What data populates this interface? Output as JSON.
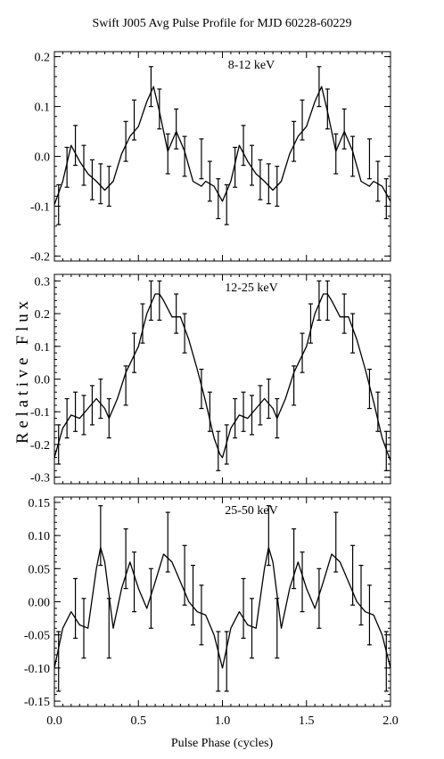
{
  "chart_data": {
    "type": "line",
    "title": "Swift J005 Avg Pulse Profile for MJD 60228-60229",
    "xlabel": "Pulse Phase (cycles)",
    "ylabel": "R e l a t i v e   F l u x",
    "xlim": [
      0.0,
      2.0
    ],
    "x_ticks": [
      "0.0",
      "0.5",
      "1.0",
      "1.5",
      "2.0"
    ],
    "panels": [
      {
        "label": "8-12 keV",
        "ylim": [
          -0.21,
          0.21
        ],
        "y_ticks": [
          -0.2,
          -0.1,
          0.0,
          0.1,
          0.2
        ],
        "y_tick_labels": [
          "-0.2",
          "-0.1",
          "0.0",
          "0.1",
          "0.2"
        ],
        "points": [
          {
            "x": 0.025,
            "y": -0.097,
            "err": 0.04
          },
          {
            "x": 0.075,
            "y": -0.022,
            "err": 0.04
          },
          {
            "x": 0.125,
            "y": 0.022,
            "err": 0.04
          },
          {
            "x": 0.175,
            "y": -0.018,
            "err": 0.04
          },
          {
            "x": 0.225,
            "y": -0.047,
            "err": 0.04
          },
          {
            "x": 0.275,
            "y": -0.055,
            "err": 0.04
          },
          {
            "x": 0.325,
            "y": -0.06,
            "err": 0.04
          },
          {
            "x": 0.425,
            "y": 0.03,
            "err": 0.04
          },
          {
            "x": 0.475,
            "y": 0.073,
            "err": 0.04
          },
          {
            "x": 0.575,
            "y": 0.14,
            "err": 0.04
          },
          {
            "x": 0.625,
            "y": 0.095,
            "err": 0.04
          },
          {
            "x": 0.675,
            "y": 0.005,
            "err": 0.04
          },
          {
            "x": 0.725,
            "y": 0.055,
            "err": 0.04
          },
          {
            "x": 0.775,
            "y": 0.0,
            "err": 0.04
          },
          {
            "x": 0.875,
            "y": -0.005,
            "err": 0.04
          },
          {
            "x": 0.925,
            "y": -0.05,
            "err": 0.04
          },
          {
            "x": 0.975,
            "y": -0.085,
            "err": 0.04
          },
          {
            "x": 1.025,
            "y": -0.097,
            "err": 0.04
          },
          {
            "x": 1.075,
            "y": -0.022,
            "err": 0.04
          },
          {
            "x": 1.125,
            "y": 0.022,
            "err": 0.04
          },
          {
            "x": 1.175,
            "y": -0.018,
            "err": 0.04
          },
          {
            "x": 1.225,
            "y": -0.047,
            "err": 0.04
          },
          {
            "x": 1.275,
            "y": -0.055,
            "err": 0.04
          },
          {
            "x": 1.325,
            "y": -0.06,
            "err": 0.04
          },
          {
            "x": 1.425,
            "y": 0.03,
            "err": 0.04
          },
          {
            "x": 1.475,
            "y": 0.073,
            "err": 0.04
          },
          {
            "x": 1.575,
            "y": 0.14,
            "err": 0.04
          },
          {
            "x": 1.625,
            "y": 0.095,
            "err": 0.04
          },
          {
            "x": 1.675,
            "y": 0.005,
            "err": 0.04
          },
          {
            "x": 1.725,
            "y": 0.055,
            "err": 0.04
          },
          {
            "x": 1.775,
            "y": 0.0,
            "err": 0.04
          },
          {
            "x": 1.875,
            "y": -0.005,
            "err": 0.04
          },
          {
            "x": 1.925,
            "y": -0.05,
            "err": 0.04
          },
          {
            "x": 1.975,
            "y": -0.085,
            "err": 0.04
          }
        ],
        "curve": [
          [
            0.0,
            -0.097
          ],
          [
            0.05,
            -0.05
          ],
          [
            0.1,
            0.022
          ],
          [
            0.15,
            -0.01
          ],
          [
            0.2,
            -0.035
          ],
          [
            0.25,
            -0.05
          ],
          [
            0.3,
            -0.068
          ],
          [
            0.35,
            -0.05
          ],
          [
            0.4,
            0.005
          ],
          [
            0.45,
            0.04
          ],
          [
            0.5,
            0.06
          ],
          [
            0.55,
            0.11
          ],
          [
            0.59,
            0.14
          ],
          [
            0.625,
            0.09
          ],
          [
            0.675,
            0.01
          ],
          [
            0.725,
            0.05
          ],
          [
            0.775,
            0.01
          ],
          [
            0.825,
            -0.05
          ],
          [
            0.875,
            -0.06
          ],
          [
            0.9,
            -0.05
          ],
          [
            0.95,
            -0.06
          ],
          [
            1.0,
            -0.09
          ],
          [
            1.05,
            -0.05
          ],
          [
            1.1,
            0.022
          ],
          [
            1.15,
            -0.01
          ],
          [
            1.2,
            -0.035
          ],
          [
            1.25,
            -0.05
          ],
          [
            1.3,
            -0.068
          ],
          [
            1.35,
            -0.05
          ],
          [
            1.4,
            0.005
          ],
          [
            1.45,
            0.04
          ],
          [
            1.5,
            0.06
          ],
          [
            1.55,
            0.11
          ],
          [
            1.59,
            0.14
          ],
          [
            1.625,
            0.09
          ],
          [
            1.675,
            0.01
          ],
          [
            1.725,
            0.05
          ],
          [
            1.775,
            0.01
          ],
          [
            1.825,
            -0.05
          ],
          [
            1.875,
            -0.06
          ],
          [
            1.9,
            -0.05
          ],
          [
            1.95,
            -0.06
          ],
          [
            2.0,
            -0.09
          ]
        ]
      },
      {
        "label": "12-25 keV",
        "ylim": [
          -0.32,
          0.32
        ],
        "y_ticks": [
          -0.3,
          -0.2,
          -0.1,
          0.0,
          0.1,
          0.2,
          0.3
        ],
        "y_tick_labels": [
          "-0.3",
          "-0.2",
          "-0.1",
          "0.0",
          "0.1",
          "0.2",
          "0.3"
        ],
        "points": [
          {
            "x": 0.025,
            "y": -0.2,
            "err": 0.06
          },
          {
            "x": 0.075,
            "y": -0.12,
            "err": 0.06
          },
          {
            "x": 0.125,
            "y": -0.1,
            "err": 0.06
          },
          {
            "x": 0.175,
            "y": -0.11,
            "err": 0.06
          },
          {
            "x": 0.225,
            "y": -0.08,
            "err": 0.06
          },
          {
            "x": 0.275,
            "y": -0.06,
            "err": 0.06
          },
          {
            "x": 0.325,
            "y": -0.12,
            "err": 0.06
          },
          {
            "x": 0.425,
            "y": -0.02,
            "err": 0.06
          },
          {
            "x": 0.475,
            "y": 0.08,
            "err": 0.06
          },
          {
            "x": 0.525,
            "y": 0.17,
            "err": 0.06
          },
          {
            "x": 0.575,
            "y": 0.24,
            "err": 0.06
          },
          {
            "x": 0.625,
            "y": 0.24,
            "err": 0.06
          },
          {
            "x": 0.725,
            "y": 0.2,
            "err": 0.06
          },
          {
            "x": 0.775,
            "y": 0.14,
            "err": 0.06
          },
          {
            "x": 0.875,
            "y": -0.03,
            "err": 0.06
          },
          {
            "x": 0.925,
            "y": -0.1,
            "err": 0.06
          },
          {
            "x": 0.975,
            "y": -0.22,
            "err": 0.06
          },
          {
            "x": 1.025,
            "y": -0.2,
            "err": 0.06
          },
          {
            "x": 1.075,
            "y": -0.12,
            "err": 0.06
          },
          {
            "x": 1.125,
            "y": -0.1,
            "err": 0.06
          },
          {
            "x": 1.175,
            "y": -0.11,
            "err": 0.06
          },
          {
            "x": 1.225,
            "y": -0.08,
            "err": 0.06
          },
          {
            "x": 1.275,
            "y": -0.06,
            "err": 0.06
          },
          {
            "x": 1.325,
            "y": -0.12,
            "err": 0.06
          },
          {
            "x": 1.425,
            "y": -0.02,
            "err": 0.06
          },
          {
            "x": 1.475,
            "y": 0.08,
            "err": 0.06
          },
          {
            "x": 1.525,
            "y": 0.17,
            "err": 0.06
          },
          {
            "x": 1.575,
            "y": 0.24,
            "err": 0.06
          },
          {
            "x": 1.625,
            "y": 0.24,
            "err": 0.06
          },
          {
            "x": 1.725,
            "y": 0.2,
            "err": 0.06
          },
          {
            "x": 1.775,
            "y": 0.14,
            "err": 0.06
          },
          {
            "x": 1.875,
            "y": -0.03,
            "err": 0.06
          },
          {
            "x": 1.925,
            "y": -0.1,
            "err": 0.06
          },
          {
            "x": 1.975,
            "y": -0.22,
            "err": 0.06
          }
        ],
        "curve": [
          [
            0.0,
            -0.24
          ],
          [
            0.05,
            -0.15
          ],
          [
            0.1,
            -0.11
          ],
          [
            0.15,
            -0.12
          ],
          [
            0.2,
            -0.09
          ],
          [
            0.25,
            -0.06
          ],
          [
            0.3,
            -0.09
          ],
          [
            0.325,
            -0.12
          ],
          [
            0.375,
            -0.06
          ],
          [
            0.425,
            0.02
          ],
          [
            0.5,
            0.1
          ],
          [
            0.55,
            0.2
          ],
          [
            0.6,
            0.26
          ],
          [
            0.625,
            0.26
          ],
          [
            0.65,
            0.24
          ],
          [
            0.7,
            0.19
          ],
          [
            0.75,
            0.19
          ],
          [
            0.8,
            0.12
          ],
          [
            0.85,
            0.03
          ],
          [
            0.9,
            -0.07
          ],
          [
            0.95,
            -0.18
          ],
          [
            0.985,
            -0.23
          ],
          [
            1.0,
            -0.24
          ],
          [
            1.05,
            -0.15
          ],
          [
            1.1,
            -0.11
          ],
          [
            1.15,
            -0.12
          ],
          [
            1.2,
            -0.09
          ],
          [
            1.25,
            -0.06
          ],
          [
            1.3,
            -0.09
          ],
          [
            1.325,
            -0.12
          ],
          [
            1.375,
            -0.06
          ],
          [
            1.425,
            0.02
          ],
          [
            1.5,
            0.1
          ],
          [
            1.55,
            0.2
          ],
          [
            1.6,
            0.26
          ],
          [
            1.625,
            0.26
          ],
          [
            1.65,
            0.24
          ],
          [
            1.7,
            0.19
          ],
          [
            1.75,
            0.19
          ],
          [
            1.8,
            0.12
          ],
          [
            1.85,
            0.03
          ],
          [
            1.9,
            -0.07
          ],
          [
            1.95,
            -0.18
          ],
          [
            2.0,
            -0.25
          ]
        ]
      },
      {
        "label": "25-50 keV",
        "ylim": [
          -0.158,
          0.158
        ],
        "y_ticks": [
          -0.15,
          -0.1,
          -0.05,
          0.0,
          0.05,
          0.1,
          0.15
        ],
        "y_tick_labels": [
          "-0.15",
          "-0.10",
          "-0.05",
          "0.00",
          "0.05",
          "0.10",
          "0.15"
        ],
        "points": [
          {
            "x": 0.025,
            "y": -0.09,
            "err": 0.045
          },
          {
            "x": 0.125,
            "y": -0.01,
            "err": 0.045
          },
          {
            "x": 0.175,
            "y": -0.04,
            "err": 0.045
          },
          {
            "x": 0.275,
            "y": 0.1,
            "err": 0.045
          },
          {
            "x": 0.325,
            "y": -0.04,
            "err": 0.045
          },
          {
            "x": 0.425,
            "y": 0.065,
            "err": 0.045
          },
          {
            "x": 0.475,
            "y": 0.03,
            "err": 0.045
          },
          {
            "x": 0.575,
            "y": 0.005,
            "err": 0.045
          },
          {
            "x": 0.675,
            "y": 0.09,
            "err": 0.045
          },
          {
            "x": 0.775,
            "y": 0.04,
            "err": 0.045
          },
          {
            "x": 0.825,
            "y": 0.01,
            "err": 0.045
          },
          {
            "x": 0.875,
            "y": -0.02,
            "err": 0.045
          },
          {
            "x": 0.975,
            "y": -0.09,
            "err": 0.045
          },
          {
            "x": 1.025,
            "y": -0.09,
            "err": 0.045
          },
          {
            "x": 1.125,
            "y": -0.01,
            "err": 0.045
          },
          {
            "x": 1.175,
            "y": -0.04,
            "err": 0.045
          },
          {
            "x": 1.275,
            "y": 0.1,
            "err": 0.045
          },
          {
            "x": 1.325,
            "y": -0.04,
            "err": 0.045
          },
          {
            "x": 1.425,
            "y": 0.065,
            "err": 0.045
          },
          {
            "x": 1.475,
            "y": 0.03,
            "err": 0.045
          },
          {
            "x": 1.575,
            "y": 0.005,
            "err": 0.045
          },
          {
            "x": 1.675,
            "y": 0.09,
            "err": 0.045
          },
          {
            "x": 1.775,
            "y": 0.04,
            "err": 0.045
          },
          {
            "x": 1.825,
            "y": 0.01,
            "err": 0.045
          },
          {
            "x": 1.875,
            "y": -0.02,
            "err": 0.045
          },
          {
            "x": 1.975,
            "y": -0.09,
            "err": 0.045
          }
        ],
        "curve": [
          [
            0.0,
            -0.1
          ],
          [
            0.05,
            -0.04
          ],
          [
            0.1,
            -0.015
          ],
          [
            0.15,
            -0.035
          ],
          [
            0.2,
            -0.04
          ],
          [
            0.25,
            0.05
          ],
          [
            0.275,
            0.082
          ],
          [
            0.3,
            0.06
          ],
          [
            0.35,
            -0.04
          ],
          [
            0.4,
            0.02
          ],
          [
            0.45,
            0.06
          ],
          [
            0.5,
            0.02
          ],
          [
            0.55,
            -0.01
          ],
          [
            0.6,
            0.03
          ],
          [
            0.65,
            0.072
          ],
          [
            0.7,
            0.06
          ],
          [
            0.75,
            0.03
          ],
          [
            0.8,
            0.0
          ],
          [
            0.85,
            -0.015
          ],
          [
            0.9,
            -0.02
          ],
          [
            0.95,
            -0.05
          ],
          [
            1.0,
            -0.1
          ],
          [
            1.05,
            -0.04
          ],
          [
            1.1,
            -0.015
          ],
          [
            1.15,
            -0.035
          ],
          [
            1.2,
            -0.04
          ],
          [
            1.25,
            0.05
          ],
          [
            1.275,
            0.082
          ],
          [
            1.3,
            0.06
          ],
          [
            1.35,
            -0.04
          ],
          [
            1.4,
            0.02
          ],
          [
            1.45,
            0.06
          ],
          [
            1.5,
            0.02
          ],
          [
            1.55,
            -0.01
          ],
          [
            1.6,
            0.03
          ],
          [
            1.65,
            0.072
          ],
          [
            1.7,
            0.06
          ],
          [
            1.75,
            0.03
          ],
          [
            1.8,
            0.0
          ],
          [
            1.85,
            -0.015
          ],
          [
            1.9,
            -0.02
          ],
          [
            1.95,
            -0.05
          ],
          [
            2.0,
            -0.1
          ]
        ]
      }
    ]
  }
}
